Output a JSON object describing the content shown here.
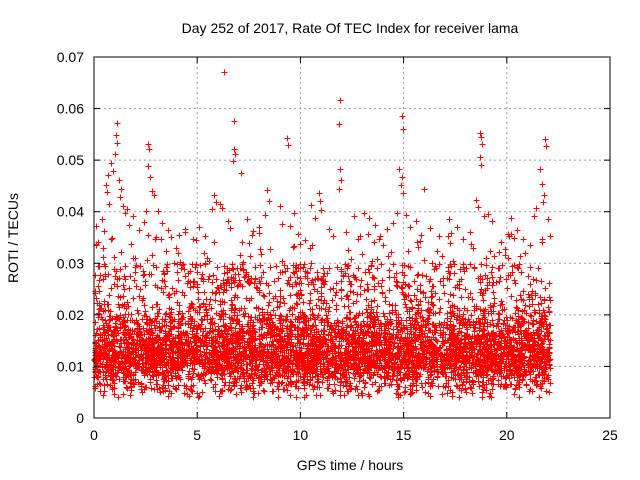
{
  "chart_data": {
    "type": "scatter",
    "title": "Day 252 of 2017, Rate Of TEC Index for receiver lama",
    "xlabel": "GPS time / hours",
    "ylabel": "ROTI / TECUs",
    "xlim": [
      0,
      25
    ],
    "ylim": [
      0,
      0.07
    ],
    "xticks": [
      "0",
      "5",
      "10",
      "15",
      "20",
      "25"
    ],
    "yticks": [
      "0",
      "0.01",
      "0.02",
      "0.03",
      "0.04",
      "0.05",
      "0.06",
      "0.07"
    ],
    "grid": true,
    "marker": "+",
    "color": "#ff0000",
    "series": [
      {
        "points": [
          [
            6.3,
            0.067
          ],
          [
            11.9,
            0.0617
          ],
          [
            11.85,
            0.0571
          ],
          [
            6.8,
            0.0575
          ],
          [
            1.1,
            0.0572
          ],
          [
            14.9,
            0.0586
          ],
          [
            14.95,
            0.056
          ],
          [
            18.7,
            0.0553
          ],
          [
            18.75,
            0.0545
          ],
          [
            18.8,
            0.0532
          ],
          [
            18.7,
            0.0507
          ],
          [
            18.75,
            0.049
          ],
          [
            21.85,
            0.0541
          ],
          [
            21.9,
            0.0528
          ],
          [
            21.6,
            0.0482
          ],
          [
            21.7,
            0.0453
          ],
          [
            2.6,
            0.0531
          ],
          [
            2.65,
            0.0522
          ],
          [
            2.6,
            0.0488
          ],
          [
            2.7,
            0.0467
          ],
          [
            2.8,
            0.0441
          ],
          [
            2.9,
            0.0432
          ],
          [
            9.35,
            0.0543
          ],
          [
            9.4,
            0.0529
          ],
          [
            1.05,
            0.0548
          ],
          [
            1.1,
            0.0533
          ],
          [
            1.0,
            0.0512
          ],
          [
            0.8,
            0.0495
          ],
          [
            0.9,
            0.0479
          ],
          [
            1.2,
            0.0462
          ],
          [
            1.3,
            0.0445
          ],
          [
            0.7,
            0.0472
          ],
          [
            6.8,
            0.0522
          ],
          [
            6.85,
            0.0512
          ],
          [
            6.75,
            0.0498
          ],
          [
            7.1,
            0.0475
          ],
          [
            14.8,
            0.0482
          ],
          [
            14.9,
            0.0468
          ],
          [
            14.85,
            0.0452
          ],
          [
            14.95,
            0.0437
          ],
          [
            16.0,
            0.0445
          ],
          [
            11.9,
            0.0482
          ],
          [
            11.95,
            0.0461
          ],
          [
            11.85,
            0.0444
          ],
          [
            8.4,
            0.0442
          ],
          [
            8.5,
            0.0421
          ],
          [
            5.8,
            0.0432
          ],
          [
            5.9,
            0.0418
          ],
          [
            5.7,
            0.0405
          ],
          [
            18.5,
            0.0422
          ],
          [
            6.1,
            0.0415
          ],
          [
            6.2,
            0.0408
          ],
          [
            10.5,
            0.0413
          ],
          [
            9.0,
            0.0411
          ],
          [
            9.7,
            0.0398
          ],
          [
            10.9,
            0.0437
          ],
          [
            10.95,
            0.0421
          ],
          [
            11.0,
            0.0403
          ],
          [
            12.6,
            0.0392
          ],
          [
            13.1,
            0.0398
          ],
          [
            13.3,
            0.0387
          ],
          [
            13.6,
            0.0375
          ],
          [
            15.6,
            0.0382
          ],
          [
            16.3,
            0.0368
          ],
          [
            17.2,
            0.0386
          ],
          [
            17.6,
            0.0371
          ],
          [
            19.1,
            0.0395
          ],
          [
            19.3,
            0.0382
          ],
          [
            20.2,
            0.0388
          ],
          [
            20.5,
            0.0364
          ],
          [
            21.3,
            0.0392
          ],
          [
            21.4,
            0.0408
          ],
          [
            22.0,
            0.0386
          ],
          [
            3.1,
            0.0402
          ],
          [
            3.3,
            0.0378
          ],
          [
            3.6,
            0.0364
          ],
          [
            4.1,
            0.0355
          ],
          [
            4.4,
            0.0367
          ],
          [
            4.8,
            0.0348
          ],
          [
            5.1,
            0.0371
          ],
          [
            5.4,
            0.0352
          ],
          [
            7.4,
            0.0385
          ],
          [
            7.7,
            0.0362
          ],
          [
            8.0,
            0.0371
          ],
          [
            8.3,
            0.0393
          ],
          [
            9.1,
            0.0376
          ],
          [
            9.9,
            0.0357
          ],
          [
            10.2,
            0.0345
          ],
          [
            12.2,
            0.0361
          ],
          [
            12.9,
            0.0352
          ],
          [
            14.2,
            0.0366
          ],
          [
            14.5,
            0.0378
          ],
          [
            15.1,
            0.0393
          ],
          [
            15.3,
            0.0371
          ],
          [
            16.7,
            0.0352
          ],
          [
            17.9,
            0.0348
          ],
          [
            19.7,
            0.0342
          ],
          [
            0.1,
            0.0372
          ],
          [
            0.2,
            0.0341
          ],
          [
            0.4,
            0.0385
          ],
          [
            0.5,
            0.0362
          ],
          [
            1.5,
            0.0398
          ],
          [
            1.7,
            0.0375
          ],
          [
            1.9,
            0.0391
          ],
          [
            2.2,
            0.0365
          ],
          [
            2.4,
            0.0381
          ],
          [
            11.4,
            0.0366
          ],
          [
            11.6,
            0.0352
          ],
          [
            13.8,
            0.0348
          ],
          [
            15.8,
            0.0343
          ],
          [
            18.2,
            0.0361
          ],
          [
            20.8,
            0.0348
          ],
          [
            21.1,
            0.0336
          ],
          [
            22.1,
            0.0352
          ],
          [
            0.6,
            0.0452
          ],
          [
            0.65,
            0.0438
          ],
          [
            0.75,
            0.0415
          ],
          [
            1.25,
            0.0428
          ],
          [
            1.4,
            0.0412
          ],
          [
            6.5,
            0.0382
          ],
          [
            6.6,
            0.0369
          ],
          [
            9.5,
            0.0372
          ],
          [
            10.7,
            0.0388
          ],
          [
            14.7,
            0.0398
          ],
          [
            18.6,
            0.0409
          ],
          [
            18.9,
            0.0392
          ],
          [
            21.75,
            0.0418
          ],
          [
            21.8,
            0.0432
          ],
          [
            1.6,
            0.0405
          ],
          [
            2.5,
            0.0402
          ]
        ]
      }
    ],
    "noise_seed": 42,
    "dense_points": 5600,
    "dense_x_range": [
      0,
      22.1
    ]
  }
}
